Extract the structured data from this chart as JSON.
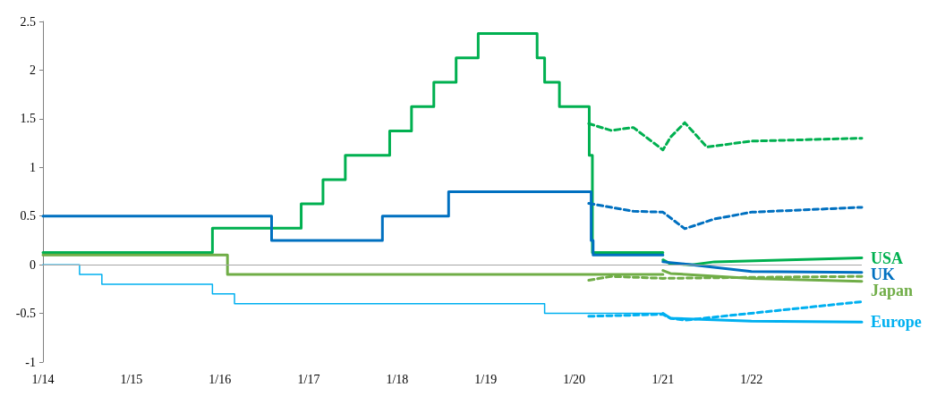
{
  "chart_data": {
    "type": "line",
    "marker": "none",
    "xlim": [
      "2014-01",
      "2023-04"
    ],
    "xticks": [
      {
        "value": "2014-01",
        "label": "1/14"
      },
      {
        "value": "2015-01",
        "label": "1/15"
      },
      {
        "value": "2016-01",
        "label": "1/16"
      },
      {
        "value": "2017-01",
        "label": "1/17"
      },
      {
        "value": "2018-01",
        "label": "1/18"
      },
      {
        "value": "2019-01",
        "label": "1/19"
      },
      {
        "value": "2020-01",
        "label": "1/20"
      },
      {
        "value": "2021-01",
        "label": "1/21"
      },
      {
        "value": "2022-01",
        "label": "1/22"
      }
    ],
    "ylim": [
      -1,
      2.5
    ],
    "yticks": [
      -1,
      -0.5,
      0,
      0.5,
      1,
      1.5,
      2,
      2.5
    ],
    "ref_lines": [
      {
        "axis": "y",
        "value": 0,
        "color": "#a6a6a6"
      }
    ],
    "series": [
      {
        "type": "step",
        "color": "#00b050",
        "x": [
          "2014-01",
          "2015-12",
          "2016-12",
          "2017-03",
          "2017-06",
          "2017-12",
          "2018-03",
          "2018-06",
          "2018-09",
          "2018-12",
          "2019-08",
          "2019-09",
          "2019-11",
          "2020-03-03",
          "2020-03-16",
          "2021-01"
        ],
        "values": [
          0.125,
          0.375,
          0.625,
          0.875,
          1.125,
          1.375,
          1.625,
          1.875,
          2.125,
          2.375,
          2.125,
          1.875,
          1.625,
          1.125,
          0.125,
          0.125
        ]
      },
      {
        "type": "step",
        "color": "#0070c0",
        "x": [
          "2014-01",
          "2016-08",
          "2017-11",
          "2018-08",
          "2020-03-11",
          "2020-03-19",
          "2021-01"
        ],
        "values": [
          0.5,
          0.25,
          0.5,
          0.75,
          0.25,
          0.1,
          0.1
        ]
      },
      {
        "type": "step",
        "color": "#70ad47",
        "x": [
          "2014-01",
          "2016-02",
          "2021-01"
        ],
        "values": [
          0.1,
          -0.1,
          -0.1
        ]
      },
      {
        "type": "step",
        "color": "#00b0f0",
        "x": [
          "2014-01",
          "2014-06",
          "2014-09",
          "2015-12",
          "2016-03",
          "2019-09",
          "2021-01"
        ],
        "values": [
          0,
          -0.1,
          -0.2,
          -0.3,
          -0.4,
          -0.5,
          -0.5
        ]
      },
      {
        "line_style": "dashed",
        "color": "#00b050",
        "x": [
          "2020-03",
          "2020-06",
          "2020-09",
          "2021-01",
          "2021-02",
          "2021-04",
          "2021-07",
          "2022-01",
          "2023-04"
        ],
        "values": [
          1.45,
          1.38,
          1.41,
          1.18,
          1.31,
          1.46,
          1.21,
          1.27,
          1.3
        ]
      },
      {
        "line_style": "dashed",
        "color": "#0070c0",
        "x": [
          "2020-03",
          "2020-09",
          "2021-01",
          "2021-04",
          "2021-08",
          "2022-01",
          "2023-04"
        ],
        "values": [
          0.63,
          0.55,
          0.54,
          0.37,
          0.47,
          0.54,
          0.59
        ]
      },
      {
        "line_style": "dashed",
        "color": "#70ad47",
        "x": [
          "2020-03",
          "2020-06",
          "2021-01",
          "2022-01",
          "2023-04"
        ],
        "values": [
          -0.16,
          -0.12,
          -0.14,
          -0.13,
          -0.12
        ]
      },
      {
        "line_style": "dashed",
        "color": "#00b0f0",
        "x": [
          "2020-03",
          "2021-01",
          "2021-02",
          "2021-04",
          "2023-04"
        ],
        "values": [
          -0.53,
          -0.51,
          -0.55,
          -0.57,
          -0.38
        ]
      },
      {
        "name": "USA",
        "color": "#00b050",
        "x": [
          "2021-01",
          "2021-02",
          "2021-05",
          "2021-08",
          "2023-04"
        ],
        "values": [
          0.05,
          0.01,
          0.0,
          0.03,
          0.07
        ]
      },
      {
        "name": "UK",
        "color": "#0070c0",
        "x": [
          "2021-01",
          "2021-05",
          "2022-01",
          "2023-04"
        ],
        "values": [
          0.03,
          0.0,
          -0.07,
          -0.08
        ]
      },
      {
        "name": "Japan",
        "color": "#70ad47",
        "x": [
          "2021-01",
          "2021-02",
          "2022-01",
          "2023-04"
        ],
        "values": [
          -0.06,
          -0.09,
          -0.14,
          -0.17
        ]
      },
      {
        "name": "Europe",
        "color": "#00b0f0",
        "x": [
          "2021-01",
          "2021-02",
          "2022-01",
          "2023-04"
        ],
        "values": [
          -0.5,
          -0.55,
          -0.58,
          -0.59
        ]
      }
    ]
  }
}
